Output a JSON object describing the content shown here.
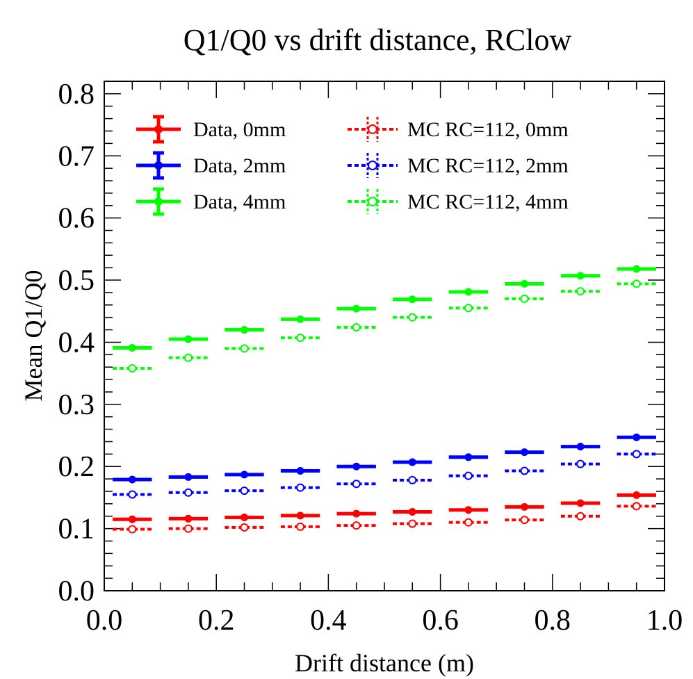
{
  "chart_data": {
    "type": "scatter",
    "title": "Q1/Q0 vs drift distance, RClow",
    "xlabel": "Drift distance (m)",
    "ylabel": "Mean Q1/Q0",
    "xlim": [
      0.0,
      1.0
    ],
    "ylim": [
      0.0,
      0.82
    ],
    "x_ticks": [
      "0.0",
      "0.2",
      "0.4",
      "0.6",
      "0.8",
      "1.0"
    ],
    "y_ticks": [
      "0.0",
      "0.1",
      "0.2",
      "0.3",
      "0.4",
      "0.5",
      "0.6",
      "0.7",
      "0.8"
    ],
    "x": [
      0.05,
      0.15,
      0.25,
      0.35,
      0.45,
      0.55,
      0.65,
      0.75,
      0.85,
      0.95
    ],
    "x_halfwidth": 0.035,
    "legend_position": "top-left",
    "series": [
      {
        "name": "Data, 0mm",
        "kind": "data",
        "color": "#ff0000",
        "values": [
          0.115,
          0.116,
          0.118,
          0.121,
          0.124,
          0.127,
          0.13,
          0.135,
          0.141,
          0.154
        ]
      },
      {
        "name": "Data, 2mm",
        "kind": "data",
        "color": "#0000ff",
        "values": [
          0.179,
          0.183,
          0.187,
          0.193,
          0.2,
          0.207,
          0.215,
          0.223,
          0.232,
          0.247
        ]
      },
      {
        "name": "Data, 4mm",
        "kind": "data",
        "color": "#00ff00",
        "values": [
          0.391,
          0.405,
          0.42,
          0.437,
          0.454,
          0.469,
          0.481,
          0.494,
          0.507,
          0.518
        ]
      },
      {
        "name": "MC RC=112, 0mm",
        "kind": "mc",
        "color": "#ff0000",
        "values": [
          0.099,
          0.1,
          0.102,
          0.103,
          0.105,
          0.108,
          0.11,
          0.114,
          0.12,
          0.136
        ]
      },
      {
        "name": "MC RC=112, 2mm",
        "kind": "mc",
        "color": "#0000ff",
        "values": [
          0.155,
          0.158,
          0.161,
          0.166,
          0.172,
          0.178,
          0.185,
          0.193,
          0.204,
          0.22
        ]
      },
      {
        "name": "MC RC=112, 4mm",
        "kind": "mc",
        "color": "#00ff00",
        "values": [
          0.358,
          0.375,
          0.39,
          0.407,
          0.424,
          0.44,
          0.455,
          0.47,
          0.482,
          0.494
        ]
      }
    ]
  }
}
